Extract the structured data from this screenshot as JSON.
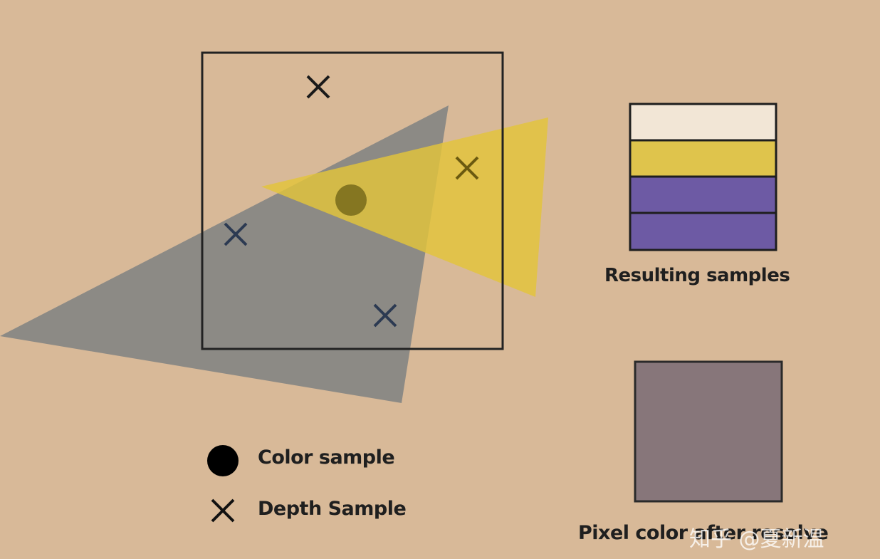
{
  "labels": {
    "resulting_samples": "Resulting samples",
    "color_sample": "Color sample",
    "depth_sample": "Depth Sample",
    "pixel_color": "Pixel color after resolve"
  },
  "watermark": "知乎 @夏新温",
  "colors": {
    "background": "#d8b998",
    "gray_triangle": "#8c8a85",
    "yellow_triangle": "#e0c23a",
    "pixel_outline": "#222222",
    "sample_white": "#f2e6d6",
    "sample_yellow": "#dfc44c",
    "sample_purple": "#6d5aa4",
    "resolved_color": "#87767a",
    "color_sample_dot": "#8a7a22",
    "depth_mark": "#2f3c52"
  },
  "resulting_samples": [
    "white",
    "yellow",
    "purple",
    "purple"
  ],
  "legend": [
    {
      "icon": "filled-circle-icon",
      "label_key": "color_sample"
    },
    {
      "icon": "x-mark-icon",
      "label_key": "depth_sample"
    }
  ]
}
